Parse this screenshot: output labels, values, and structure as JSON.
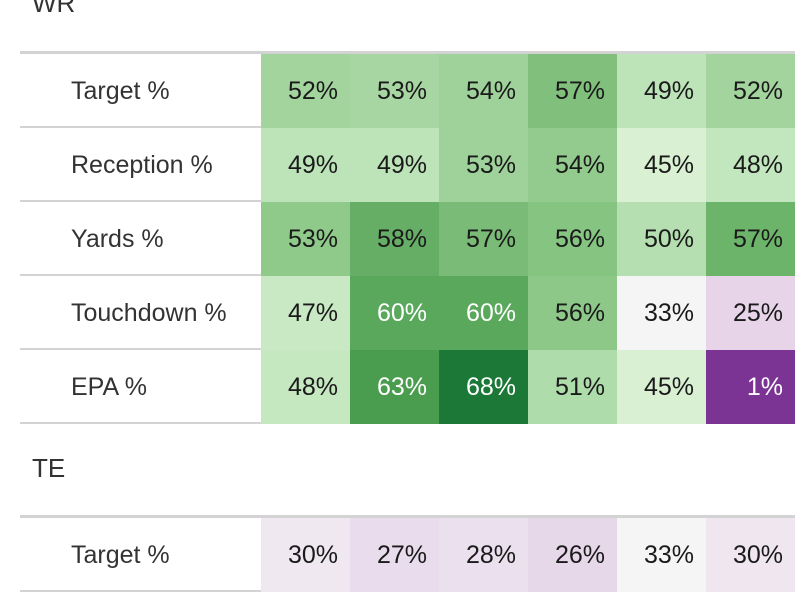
{
  "chart_data": [
    {
      "type": "heatmap",
      "title": "WR",
      "rows": [
        "Target %",
        "Reception %",
        "Yards %",
        "Touchdown %",
        "EPA %"
      ],
      "values": [
        [
          52,
          53,
          54,
          57,
          49,
          52
        ],
        [
          49,
          49,
          53,
          54,
          45,
          48
        ],
        [
          53,
          58,
          57,
          56,
          50,
          57
        ],
        [
          47,
          60,
          60,
          56,
          33,
          25
        ],
        [
          48,
          63,
          68,
          51,
          45,
          1
        ]
      ],
      "labels": [
        [
          "52%",
          "53%",
          "54%",
          "57%",
          "49%",
          "52%"
        ],
        [
          "49%",
          "49%",
          "53%",
          "54%",
          "45%",
          "48%"
        ],
        [
          "53%",
          "58%",
          "57%",
          "56%",
          "50%",
          "57%"
        ],
        [
          "47%",
          "60%",
          "60%",
          "56%",
          "33%",
          "25%"
        ],
        [
          "48%",
          "63%",
          "68%",
          "51%",
          "45%",
          "1%"
        ]
      ],
      "colors": [
        [
          "#a3d49e",
          "#a7d6a2",
          "#9fd29a",
          "#80c07c",
          "#bde3b8",
          "#a3d49e"
        ],
        [
          "#bde3b8",
          "#bde3b8",
          "#9fd29a",
          "#92cb8d",
          "#d9f0d3",
          "#c2e6bd"
        ],
        [
          "#8fca8a",
          "#66ae66",
          "#79bb77",
          "#86c482",
          "#b5dfb0",
          "#6db46b"
        ],
        [
          "#c9e9c4",
          "#5aa85c",
          "#5aa85c",
          "#8dc889",
          "#f5f5f5",
          "#e7d4e8"
        ],
        [
          "#c6e8c1",
          "#4a9c4f",
          "#1b7837",
          "#aedcab",
          "#d9f0d3",
          "#7b3494"
        ]
      ],
      "color_scale": "purple-white-green diverging"
    },
    {
      "type": "heatmap",
      "title": "TE",
      "rows": [
        "Target %"
      ],
      "values": [
        [
          30,
          27,
          28,
          26,
          33,
          30
        ]
      ],
      "labels": [
        [
          "30%",
          "27%",
          "28%",
          "26%",
          "33%",
          "30%"
        ]
      ],
      "colors": [
        [
          "#efe8f1",
          "#e9dcec",
          "#ebe1ee",
          "#e6d7e9",
          "#f5f5f5",
          "#efe6f0"
        ]
      ]
    }
  ]
}
